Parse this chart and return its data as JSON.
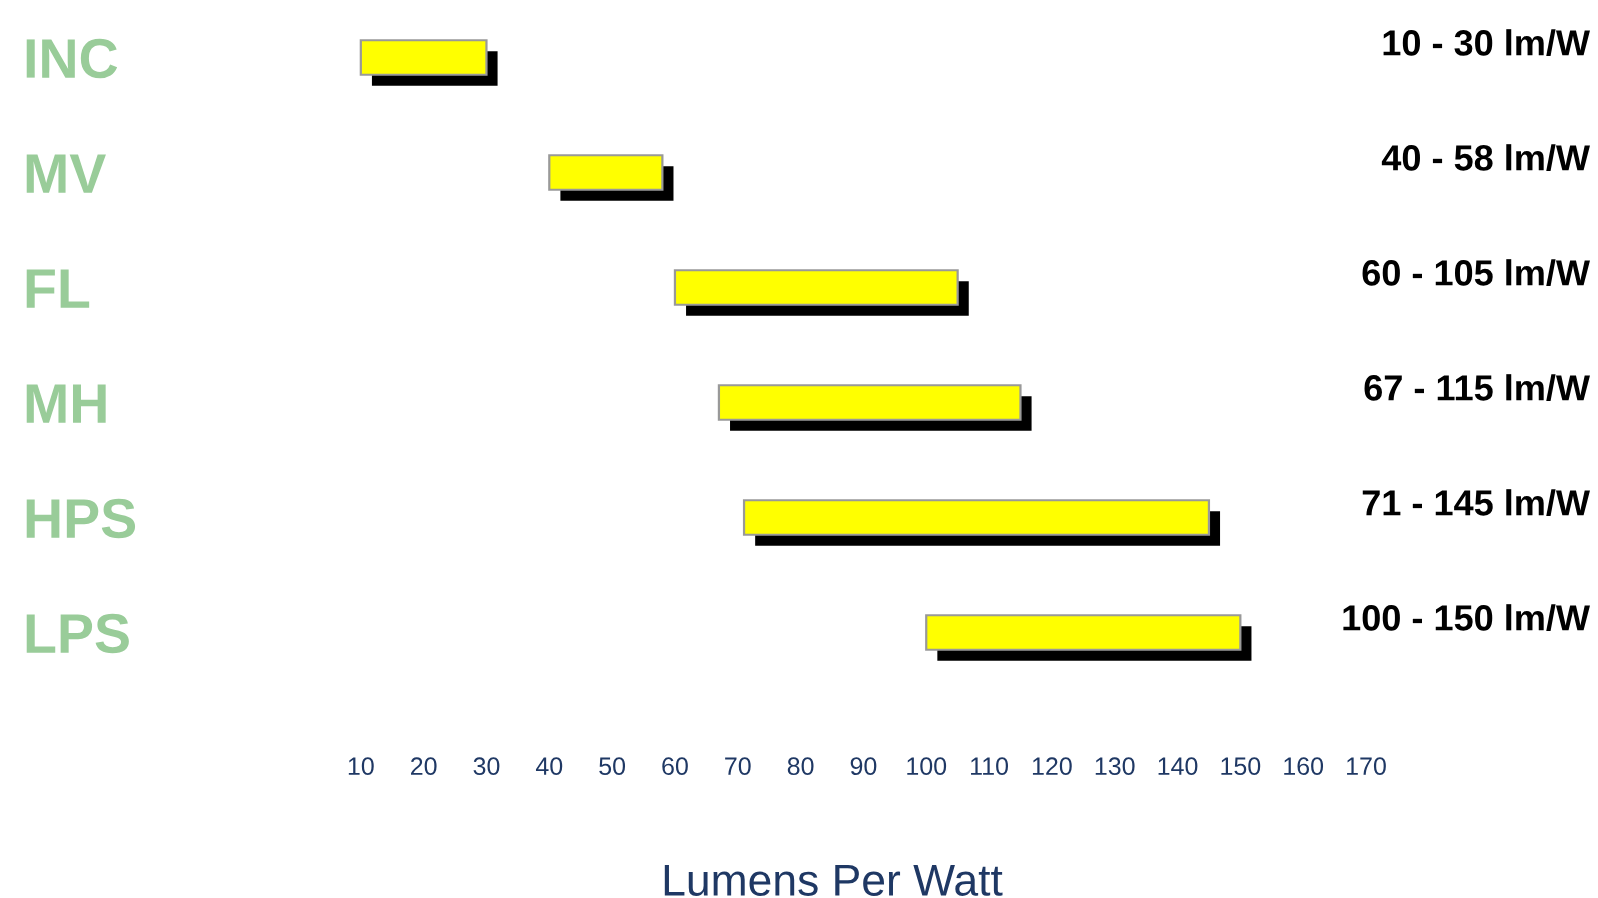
{
  "chart_data": {
    "type": "bar",
    "orientation": "horizontal",
    "xlabel": "Lumens Per Watt",
    "categories": [
      "INC",
      "MV",
      "FL",
      "MH",
      "HPS",
      "LPS"
    ],
    "base": [
      10,
      40,
      60,
      67,
      71,
      100
    ],
    "values": [
      20,
      18,
      45,
      48,
      74,
      50
    ],
    "annotations": [
      "10 - 30 lm/W",
      "40 - 58 lm/W",
      "60 - 105 lm/W",
      "67 - 115 lm/W",
      "71 - 145 lm/W",
      "100 - 150 lm/W"
    ],
    "color": "#ffff00",
    "xlim": [
      0,
      170
    ],
    "xticks": [
      10,
      20,
      30,
      40,
      50,
      60,
      70,
      80,
      90,
      100,
      110,
      120,
      130,
      140,
      150,
      160,
      170
    ],
    "grid": false,
    "legend": false
  }
}
